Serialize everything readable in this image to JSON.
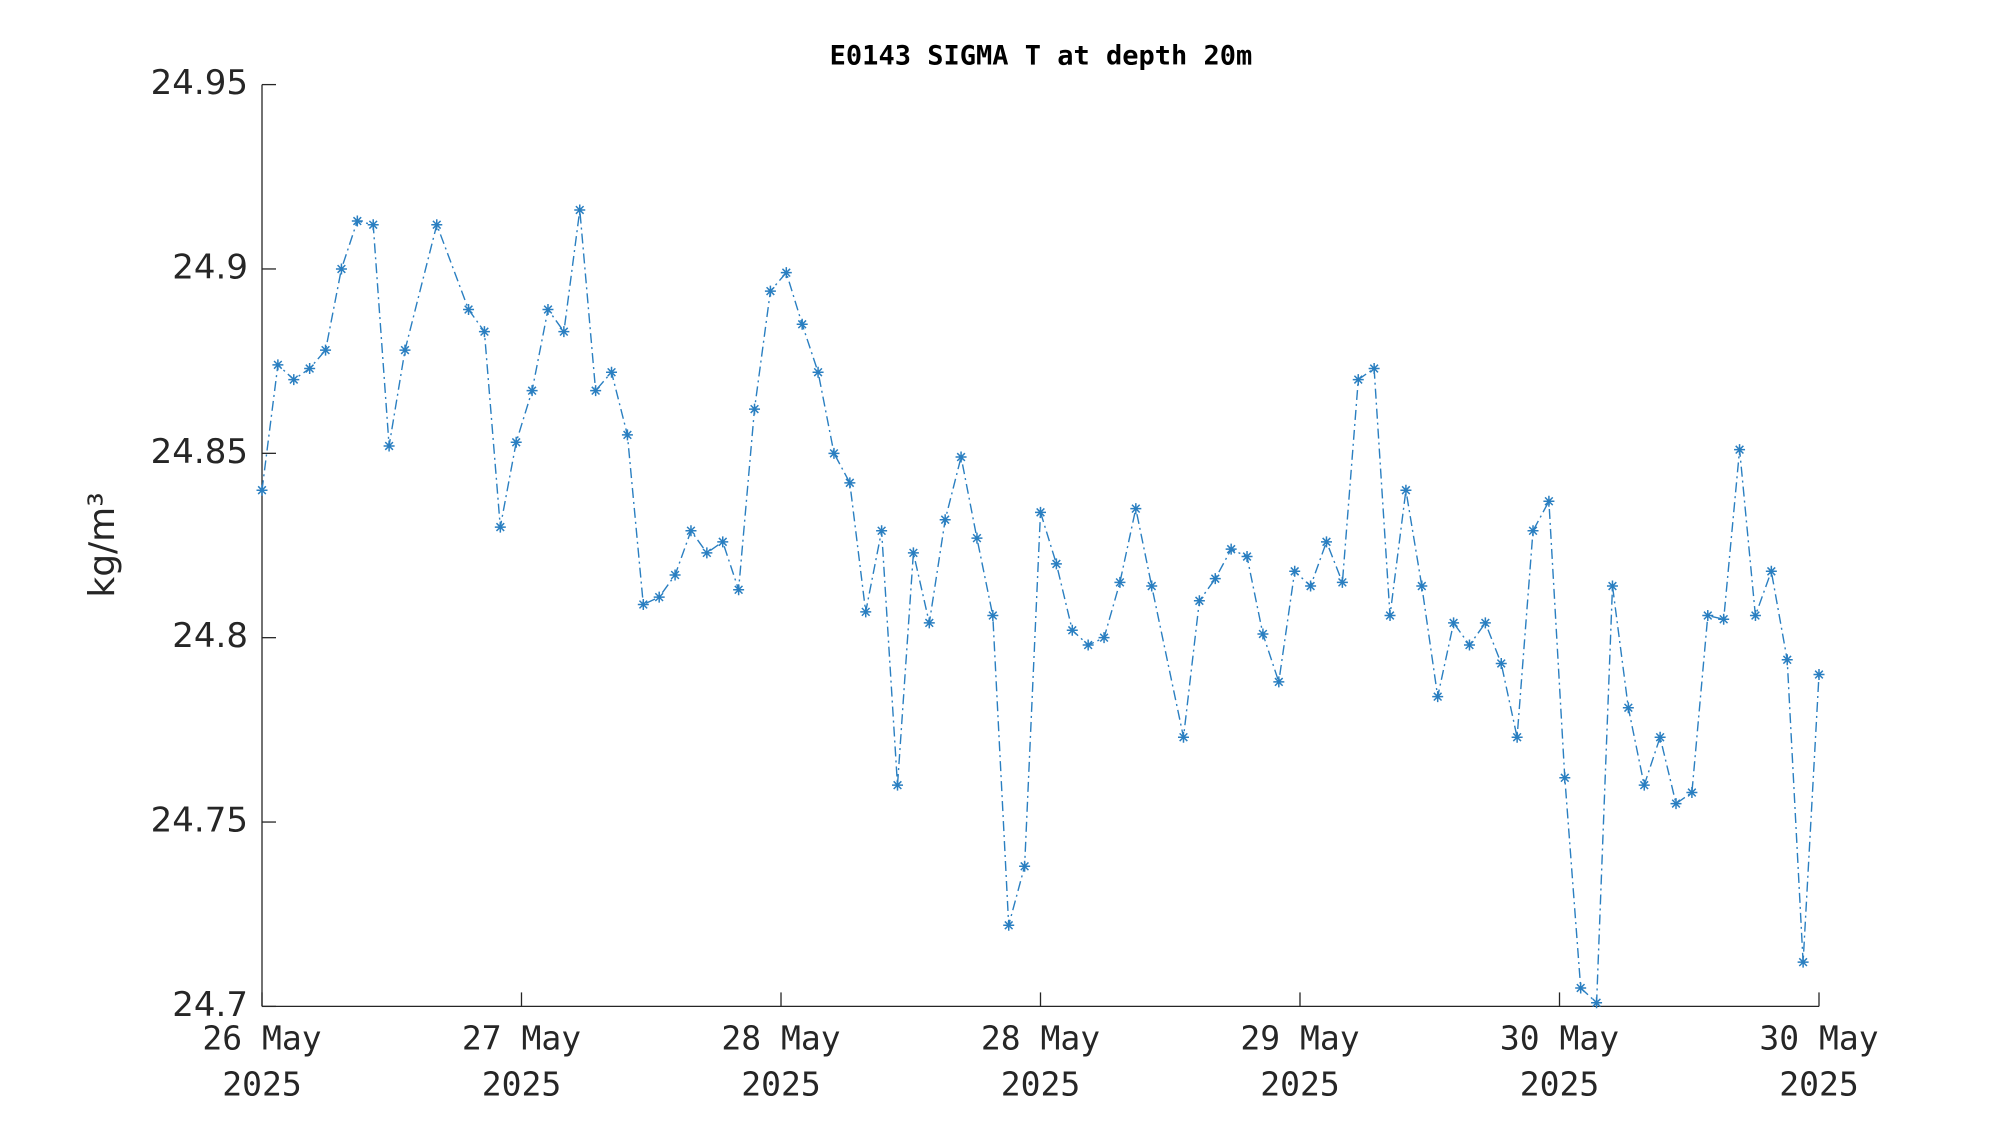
{
  "chart_data": {
    "type": "line",
    "title": "E0143 SIGMA T at depth 20m",
    "ylabel": "kg/m³",
    "series": [
      {
        "name": "SIGMA T",
        "color": "#2a7fc1",
        "x": [
          0,
          1,
          2,
          3,
          4,
          5,
          6,
          7,
          8,
          9,
          11,
          13,
          14,
          15,
          16,
          17,
          18,
          19,
          20,
          21,
          22,
          23,
          24,
          25,
          26,
          27,
          28,
          29,
          30,
          31,
          32,
          33,
          34,
          35,
          36,
          37,
          38,
          39,
          40,
          41,
          42,
          43,
          44,
          45,
          46,
          47,
          48,
          49,
          50,
          51,
          52,
          53,
          54,
          55,
          56,
          58,
          59,
          60,
          61,
          62,
          63,
          64,
          65,
          66,
          67,
          68,
          69,
          70,
          71,
          72,
          73,
          74,
          75,
          76,
          77,
          78,
          79,
          80,
          81,
          82,
          83,
          84,
          85,
          86,
          87,
          88,
          89,
          90,
          91,
          92,
          93,
          94,
          95,
          96,
          97,
          98
        ],
        "values": [
          24.84,
          24.874,
          24.87,
          24.873,
          24.878,
          24.9,
          24.913,
          24.912,
          24.852,
          24.878,
          24.912,
          24.889,
          24.883,
          24.83,
          24.853,
          24.867,
          24.889,
          24.883,
          24.916,
          24.867,
          24.872,
          24.855,
          24.809,
          24.811,
          24.817,
          24.829,
          24.823,
          24.826,
          24.813,
          24.862,
          24.894,
          24.899,
          24.885,
          24.872,
          24.85,
          24.842,
          24.807,
          24.829,
          24.76,
          24.823,
          24.804,
          24.832,
          24.849,
          24.827,
          24.806,
          24.722,
          24.738,
          24.834,
          24.82,
          24.802,
          24.798,
          24.8,
          24.815,
          24.835,
          24.814,
          24.773,
          24.81,
          24.816,
          24.824,
          24.822,
          24.801,
          24.788,
          24.818,
          24.814,
          24.826,
          24.815,
          24.87,
          24.873,
          24.806,
          24.84,
          24.814,
          24.784,
          24.804,
          24.798,
          24.804,
          24.793,
          24.773,
          24.829,
          24.837,
          24.762,
          24.705,
          24.701,
          24.814,
          24.781,
          24.76,
          24.773,
          24.755,
          24.758,
          24.806,
          24.805,
          24.851,
          24.806,
          24.818,
          24.794,
          24.712,
          24.79
        ]
      }
    ],
    "xlim": [
      0,
      98
    ],
    "xticks": [
      {
        "value": 0,
        "label": "26 May 2025"
      },
      {
        "value": 16.333,
        "label": "27 May 2025"
      },
      {
        "value": 32.667,
        "label": "28 May 2025"
      },
      {
        "value": 49,
        "label": "28 May 2025"
      },
      {
        "value": 65.333,
        "label": "29 May 2025"
      },
      {
        "value": 81.667,
        "label": "30 May 2025"
      },
      {
        "value": 98,
        "label": "30 May 2025"
      }
    ],
    "ylim": [
      24.7,
      24.95
    ],
    "yticks": [
      24.7,
      24.75,
      24.8,
      24.85,
      24.9,
      24.95
    ],
    "grid": false
  }
}
